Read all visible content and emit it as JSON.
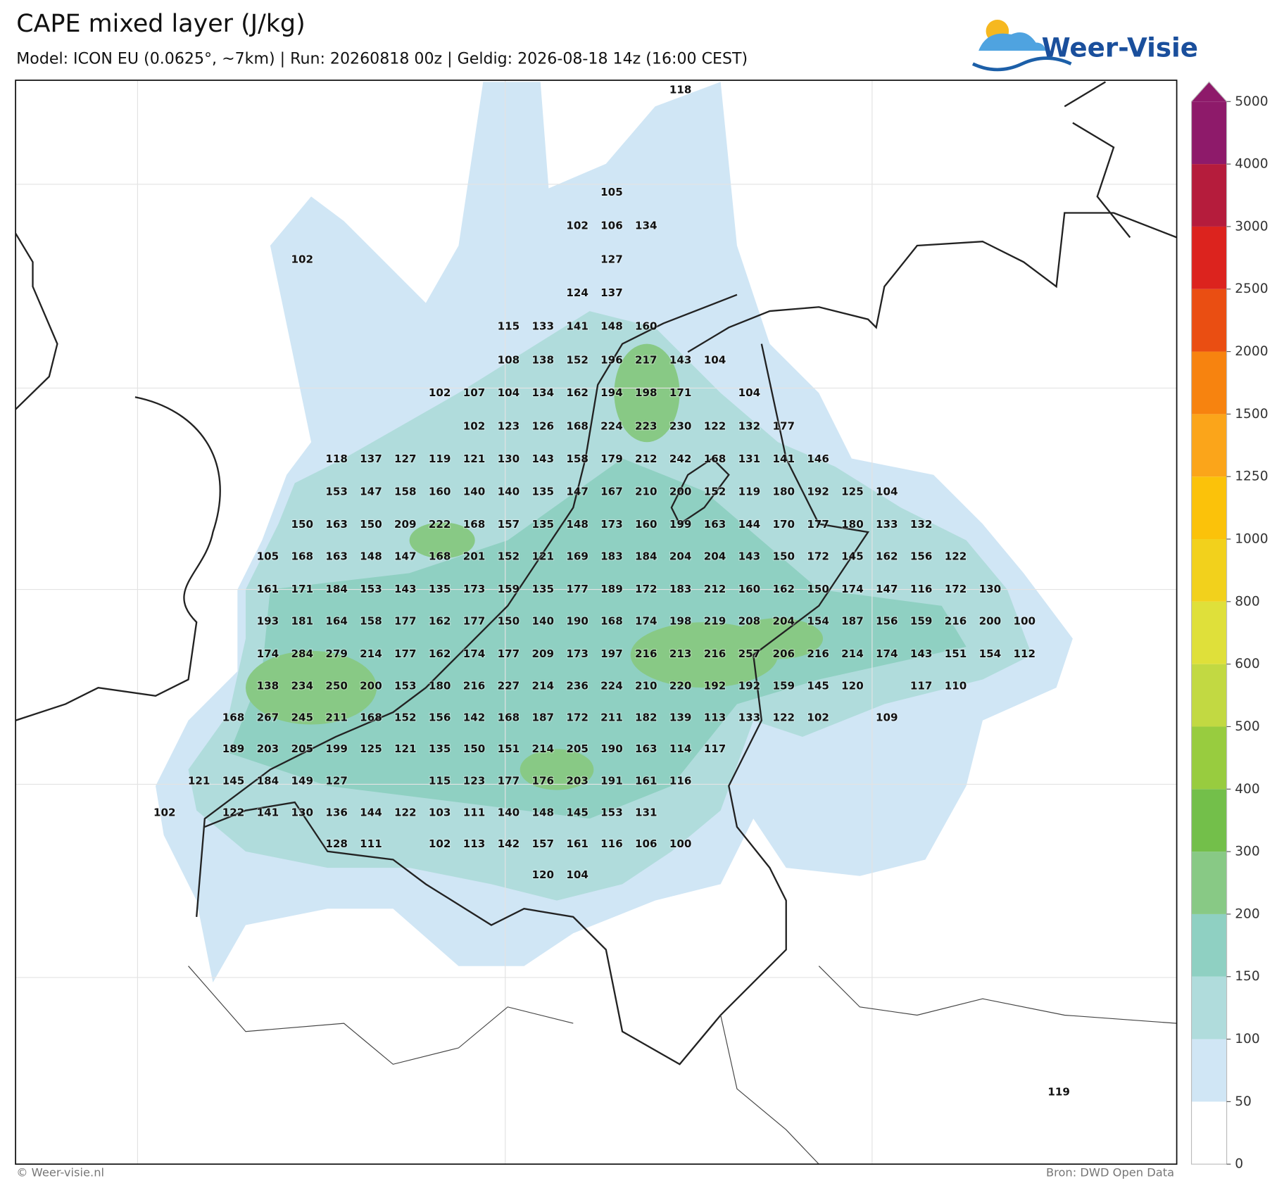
{
  "header": {
    "title": "CAPE mixed layer (J/kg)",
    "subtitle": "Model: ICON EU (0.0625°, ~7km)  |  Run: 20260818 00z  |  Geldig: 2026-08-18 14z (16:00 CEST)",
    "logo": "Weer-Visie"
  },
  "map": {
    "label_rows": [
      [
        null,
        null,
        null,
        null,
        null,
        null,
        null,
        null,
        null,
        null,
        null,
        null,
        null,
        null,
        null,
        118,
        null,
        null,
        null,
        null,
        null,
        null,
        null,
        null,
        null,
        null,
        null
      ],
      [
        null,
        null,
        null,
        null,
        null,
        null,
        null,
        null,
        null,
        null,
        null,
        null,
        null,
        105,
        null,
        null,
        null,
        null,
        null,
        null,
        null,
        null,
        null,
        null,
        null,
        null,
        null
      ],
      [
        null,
        null,
        null,
        null,
        null,
        null,
        null,
        null,
        null,
        null,
        null,
        null,
        102,
        106,
        134,
        null,
        null,
        null,
        null,
        null,
        null,
        null,
        null,
        null,
        null,
        null,
        null
      ],
      [
        null,
        null,
        null,
        null,
        102,
        null,
        null,
        null,
        null,
        null,
        null,
        null,
        null,
        127,
        null,
        null,
        null,
        null,
        null,
        null,
        null,
        null,
        null,
        null,
        null,
        null,
        null
      ],
      [
        null,
        null,
        null,
        null,
        null,
        null,
        null,
        null,
        null,
        null,
        null,
        null,
        124,
        137,
        null,
        null,
        null,
        null,
        null,
        null,
        null,
        null,
        null,
        null,
        null,
        null,
        null
      ],
      [
        null,
        null,
        null,
        null,
        null,
        null,
        null,
        null,
        null,
        null,
        115,
        133,
        141,
        148,
        160,
        null,
        null,
        null,
        null,
        null,
        null,
        null,
        null,
        null,
        null,
        null,
        null
      ],
      [
        null,
        null,
        null,
        null,
        null,
        null,
        null,
        null,
        null,
        null,
        108,
        138,
        152,
        196,
        217,
        143,
        104,
        null,
        null,
        null,
        null,
        null,
        null,
        null,
        null,
        null,
        null
      ],
      [
        null,
        null,
        null,
        null,
        null,
        null,
        null,
        null,
        102,
        107,
        104,
        134,
        162,
        194,
        198,
        171,
        null,
        104,
        null,
        null,
        null,
        null,
        null,
        null,
        null,
        null,
        null
      ],
      [
        null,
        null,
        null,
        null,
        null,
        null,
        null,
        null,
        null,
        102,
        123,
        126,
        168,
        224,
        223,
        230,
        122,
        132,
        177,
        null,
        null,
        null,
        null,
        null,
        null,
        null,
        null
      ],
      [
        null,
        null,
        null,
        null,
        null,
        118,
        137,
        127,
        119,
        121,
        130,
        143,
        158,
        179,
        212,
        242,
        168,
        131,
        141,
        146,
        null,
        null,
        null,
        null,
        null,
        null,
        null
      ],
      [
        null,
        null,
        null,
        null,
        null,
        153,
        147,
        158,
        160,
        140,
        140,
        135,
        147,
        167,
        210,
        200,
        152,
        119,
        180,
        192,
        125,
        104,
        null,
        null,
        null,
        null,
        null
      ],
      [
        null,
        null,
        null,
        null,
        150,
        163,
        150,
        209,
        222,
        168,
        157,
        135,
        148,
        173,
        160,
        199,
        163,
        144,
        170,
        177,
        180,
        133,
        132,
        null,
        null,
        null,
        null
      ],
      [
        null,
        null,
        null,
        105,
        168,
        163,
        148,
        147,
        168,
        201,
        152,
        121,
        169,
        183,
        184,
        204,
        204,
        143,
        150,
        172,
        145,
        162,
        156,
        122,
        null,
        null,
        null
      ],
      [
        null,
        null,
        null,
        161,
        171,
        184,
        153,
        143,
        135,
        173,
        159,
        135,
        177,
        189,
        172,
        183,
        212,
        160,
        162,
        150,
        174,
        147,
        116,
        172,
        130,
        null,
        null
      ],
      [
        null,
        null,
        null,
        193,
        181,
        164,
        158,
        177,
        162,
        177,
        150,
        140,
        190,
        168,
        174,
        198,
        219,
        208,
        204,
        154,
        187,
        156,
        159,
        216,
        200,
        100,
        null
      ],
      [
        null,
        null,
        null,
        174,
        284,
        279,
        214,
        177,
        162,
        174,
        177,
        209,
        173,
        197,
        216,
        213,
        216,
        257,
        206,
        216,
        214,
        174,
        143,
        151,
        154,
        112,
        null
      ],
      [
        null,
        null,
        null,
        138,
        234,
        250,
        200,
        153,
        180,
        216,
        227,
        214,
        236,
        224,
        210,
        220,
        192,
        192,
        159,
        145,
        120,
        null,
        117,
        110,
        null,
        null,
        null
      ],
      [
        null,
        null,
        168,
        267,
        245,
        211,
        168,
        152,
        156,
        142,
        168,
        187,
        172,
        211,
        182,
        139,
        113,
        133,
        122,
        102,
        null,
        109,
        null,
        null,
        null,
        null,
        null
      ],
      [
        null,
        null,
        189,
        203,
        205,
        199,
        125,
        121,
        135,
        150,
        151,
        214,
        205,
        190,
        163,
        114,
        117,
        null,
        null,
        null,
        null,
        null,
        null,
        null,
        null,
        null,
        null
      ],
      [
        null,
        121,
        145,
        184,
        149,
        127,
        null,
        null,
        115,
        123,
        177,
        176,
        203,
        191,
        161,
        116,
        null,
        null,
        null,
        null,
        null,
        null,
        null,
        null,
        null,
        null,
        null
      ],
      [
        102,
        null,
        122,
        141,
        130,
        136,
        144,
        122,
        103,
        111,
        140,
        148,
        145,
        153,
        131,
        null,
        null,
        null,
        null,
        null,
        null,
        null,
        null,
        null,
        null,
        null,
        null
      ],
      [
        null,
        null,
        null,
        null,
        null,
        128,
        111,
        null,
        102,
        113,
        142,
        157,
        161,
        116,
        106,
        100,
        null,
        null,
        null,
        null,
        null,
        null,
        null,
        null,
        null,
        null,
        null
      ],
      [
        null,
        null,
        null,
        null,
        null,
        null,
        null,
        null,
        null,
        null,
        null,
        120,
        104,
        null,
        null,
        null,
        null,
        null,
        null,
        null,
        null,
        null,
        null,
        null,
        null,
        null,
        null
      ],
      [
        null,
        null,
        null,
        null,
        null,
        null,
        null,
        null,
        null,
        null,
        null,
        null,
        null,
        null,
        null,
        null,
        null,
        null,
        null,
        null,
        null,
        null,
        null,
        null,
        null,
        null,
        119
      ]
    ]
  },
  "colorbar": {
    "levels": [
      0,
      50,
      100,
      150,
      200,
      300,
      400,
      500,
      600,
      800,
      1000,
      1250,
      1500,
      2000,
      2500,
      3000,
      4000,
      5000
    ],
    "colors": [
      "#ffffff",
      "#d0e6f5",
      "#b0dcdc",
      "#8fd0c2",
      "#88c985",
      "#73bf4a",
      "#98cc3f",
      "#c2d942",
      "#dfe03a",
      "#f2d11c",
      "#fbc20a",
      "#fba51a",
      "#f7830f",
      "#ea4e12",
      "#dc231e",
      "#b51c3c",
      "#8e1a6a"
    ]
  },
  "footer": {
    "credit": "© Weer-visie.nl",
    "source": "Bron: DWD Open Data"
  }
}
